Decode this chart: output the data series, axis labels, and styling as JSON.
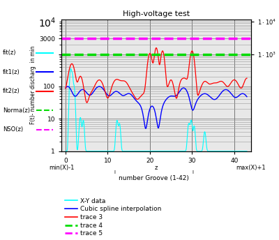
{
  "title": "High-voltage test",
  "xlabel": "number Groove (1-42)",
  "ylabel": "F(t)- number discharg  in min",
  "xlim": [
    -1,
    44
  ],
  "xmin_label": "min(X)-1",
  "xmid_label": "z",
  "xmax_label": "max(X)+1",
  "legend_entries": [
    "X-Y data",
    "Cubic spline interpolation",
    "trace 3",
    "trace 4",
    "trace 5"
  ],
  "legend_colors": [
    "cyan",
    "blue",
    "red",
    "#00dd00",
    "magenta"
  ],
  "legend_linestyles": [
    "-",
    "-",
    "-",
    "--",
    "--"
  ],
  "left_labels": [
    "fit(z)",
    "fit1(z)",
    "fit2(z)",
    "Norma(z)",
    "NSO(z)"
  ],
  "left_label_colors": [
    "cyan",
    "blue",
    "red",
    "#00dd00",
    "magenta"
  ],
  "trace4_level": 1000,
  "trace5_level": 3000,
  "background_color": "#ffffff",
  "plot_bg": "#e8e8e8"
}
